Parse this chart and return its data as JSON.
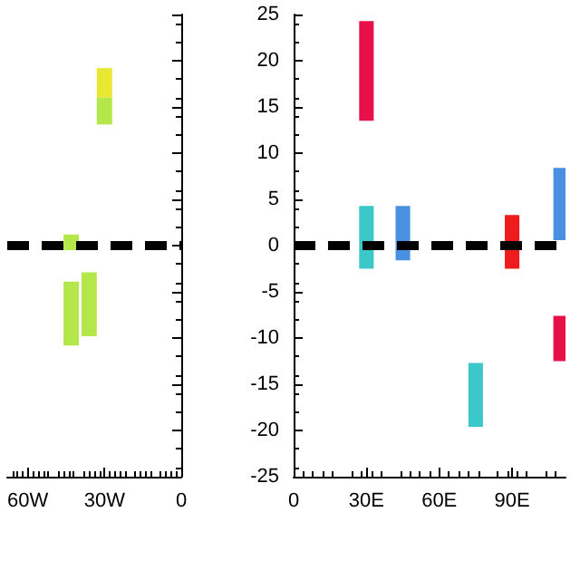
{
  "chart_data": [
    {
      "type": "bar",
      "xlim": [
        -68,
        0
      ],
      "xticks": [
        {
          "value": -60,
          "label": "60W"
        },
        {
          "value": -30,
          "label": "30W"
        },
        0
      ],
      "ylim": [
        -25,
        25
      ],
      "yticks": [
        -25,
        -20,
        -15,
        -10,
        -5,
        0,
        5,
        10,
        15,
        20,
        25
      ],
      "tick_labels": "x",
      "grid": false,
      "series": [
        {
          "color": "#e8e832",
          "x": [
            -30
          ],
          "base": [
            16
          ],
          "values": [
            3.2
          ]
        },
        {
          "color": "#b4e84a",
          "x": [
            -43,
            -36,
            -30
          ],
          "base": [
            -10.8,
            -9.8,
            13.1
          ],
          "values": [
            6.9,
            6.9,
            2.9
          ]
        },
        {
          "color": "#b4e84a",
          "x": [
            -43
          ],
          "base": [
            -0.5
          ],
          "values": [
            1.7
          ]
        }
      ],
      "ref_lines": [
        {
          "axis": "y",
          "value": 0,
          "color": "#000000",
          "line_style": "dashed"
        }
      ]
    },
    {
      "type": "bar",
      "xlim": [
        0,
        112
      ],
      "xticks": [
        0,
        {
          "value": 30,
          "label": "30E"
        },
        {
          "value": 60,
          "label": "60E"
        },
        {
          "value": 90,
          "label": "90E"
        }
      ],
      "ylim": [
        -25,
        25
      ],
      "yticks": [
        -25,
        -20,
        -15,
        -10,
        -5,
        0,
        5,
        10,
        15,
        20,
        25
      ],
      "grid": false,
      "series": [
        {
          "color": "#e8104a",
          "x": [
            30,
            110
          ],
          "base": [
            13.5,
            -12.5
          ],
          "values": [
            10.8,
            4.9
          ]
        },
        {
          "color": "#3cc8c8",
          "x": [
            30,
            75
          ],
          "base": [
            -2.5,
            -19.6
          ],
          "values": [
            6.8,
            6.9
          ]
        },
        {
          "color": "#4a90e0",
          "x": [
            45,
            110
          ],
          "base": [
            -1.6,
            0.6
          ],
          "values": [
            5.9,
            7.8
          ]
        },
        {
          "color": "#ee1c1c",
          "x": [
            90
          ],
          "base": [
            -2.5
          ],
          "values": [
            5.8
          ]
        }
      ],
      "ref_lines": [
        {
          "axis": "y",
          "value": 0,
          "color": "#000000",
          "line_style": "dashed"
        }
      ]
    }
  ]
}
